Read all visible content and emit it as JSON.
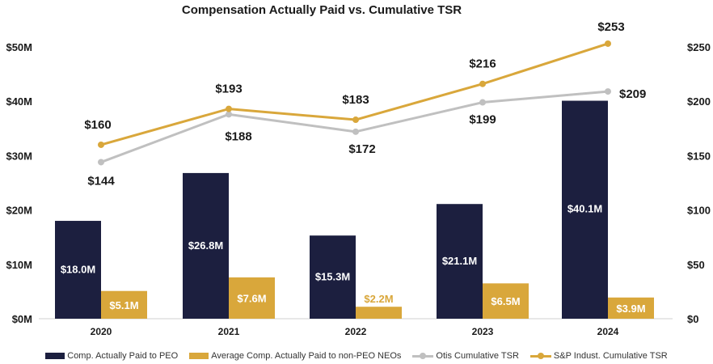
{
  "chart_data": {
    "type": "bar+line",
    "title": "Compensation Actually Paid vs. Cumulative TSR",
    "categories": [
      "2020",
      "2021",
      "2022",
      "2023",
      "2024"
    ],
    "left_axis": {
      "ticks": [
        "$0M",
        "$10M",
        "$20M",
        "$30M",
        "$40M",
        "$50M"
      ],
      "range": [
        0,
        50
      ]
    },
    "right_axis": {
      "ticks": [
        "$0",
        "$50",
        "$100",
        "$150",
        "$200",
        "$250"
      ],
      "range": [
        0,
        250
      ]
    },
    "series": [
      {
        "name": "Comp. Actually Paid to PEO",
        "kind": "bar",
        "axis": "left",
        "color": "#1c1f3f",
        "values": [
          18.0,
          26.8,
          15.3,
          21.1,
          40.1
        ],
        "labels": [
          "$18.0M",
          "$26.8M",
          "$15.3M",
          "$21.1M",
          "$40.1M"
        ]
      },
      {
        "name": "Average Comp. Actually Paid to non-PEO NEOs",
        "kind": "bar",
        "axis": "left",
        "color": "#d9a73b",
        "values": [
          5.1,
          7.6,
          2.2,
          6.5,
          3.9
        ],
        "labels": [
          "$5.1M",
          "$7.6M",
          "$2.2M",
          "$6.5M",
          "$3.9M"
        ]
      },
      {
        "name": "Otis Cumulative TSR",
        "kind": "line",
        "axis": "right",
        "color": "#c0c0c0",
        "values": [
          144,
          188,
          172,
          199,
          209
        ],
        "labels": [
          "$144",
          "$188",
          "$172",
          "$199",
          "$209"
        ]
      },
      {
        "name": "S&P Indust. Cumulative TSR",
        "kind": "line",
        "axis": "right",
        "color": "#d9a73b",
        "values": [
          160,
          193,
          183,
          216,
          253
        ],
        "labels": [
          "$160",
          "$193",
          "$183",
          "$216",
          "$253"
        ]
      }
    ]
  }
}
